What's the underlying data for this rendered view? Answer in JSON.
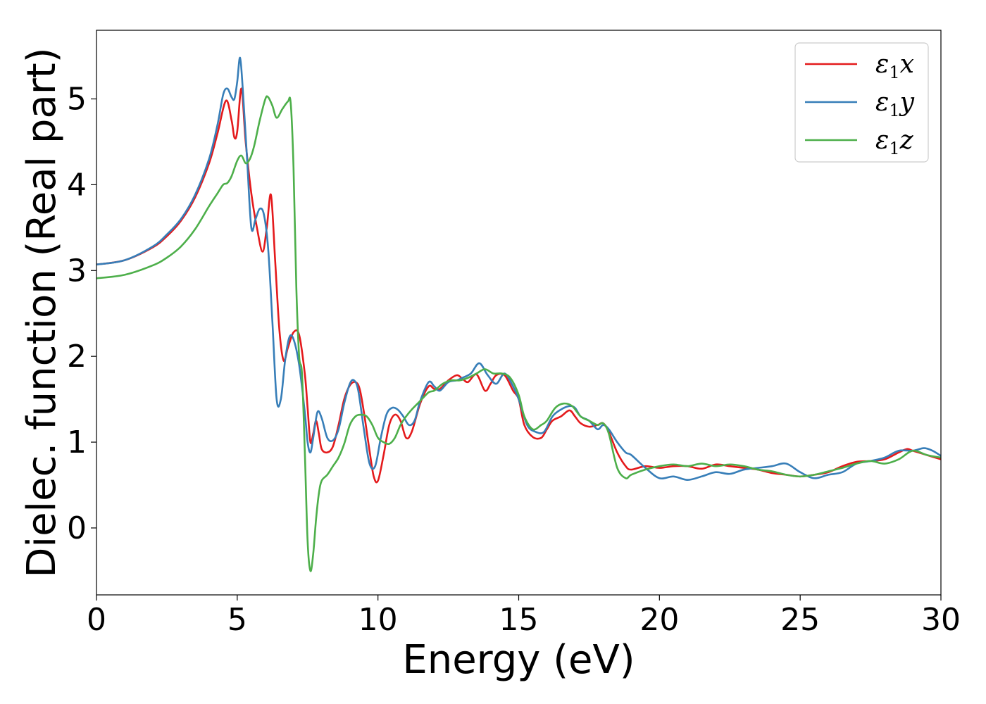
{
  "chart_data": {
    "type": "line",
    "xlabel": "Energy (eV)",
    "ylabel": "Dielec. function (Real part)",
    "xlim": [
      0,
      30
    ],
    "ylim": [
      -0.78,
      5.8
    ],
    "xticks": [
      0,
      5,
      10,
      15,
      20,
      25,
      30
    ],
    "yticks": [
      0,
      1,
      2,
      3,
      4,
      5
    ],
    "grid": false,
    "legend_position": "top-right",
    "series": [
      {
        "name": "ε1x",
        "label_base": "ε",
        "label_sub": "1",
        "label_tail": "x",
        "color": "#e41a1c",
        "x": [
          0,
          1,
          2,
          2.5,
          3,
          3.5,
          4,
          4.3,
          4.6,
          4.8,
          4.9,
          5.0,
          5.15,
          5.3,
          5.5,
          5.7,
          5.9,
          6.05,
          6.2,
          6.35,
          6.5,
          6.65,
          6.8,
          7.0,
          7.2,
          7.4,
          7.5,
          7.6,
          7.7,
          7.8,
          7.9,
          8.0,
          8.2,
          8.4,
          8.6,
          8.8,
          9.0,
          9.2,
          9.35,
          9.5,
          9.7,
          9.85,
          10.0,
          10.2,
          10.4,
          10.6,
          10.8,
          11.0,
          11.2,
          11.5,
          11.8,
          12.0,
          12.2,
          12.5,
          12.8,
          13.0,
          13.2,
          13.5,
          13.8,
          14.0,
          14.2,
          14.5,
          14.8,
          15.0,
          15.2,
          15.5,
          15.8,
          16.0,
          16.2,
          16.5,
          16.8,
          17.0,
          17.2,
          17.5,
          17.8,
          18.0,
          18.2,
          18.5,
          18.8,
          19.0,
          19.5,
          20.0,
          20.5,
          21.0,
          21.5,
          22.0,
          22.5,
          23.0,
          23.5,
          24.0,
          24.5,
          25.0,
          25.5,
          26.0,
          26.5,
          27.0,
          27.5,
          28.0,
          28.5,
          28.8,
          29.0,
          29.5,
          30.0
        ],
        "y": [
          3.07,
          3.12,
          3.27,
          3.4,
          3.58,
          3.85,
          4.25,
          4.6,
          4.98,
          4.75,
          4.55,
          4.62,
          5.12,
          4.5,
          3.9,
          3.5,
          3.22,
          3.5,
          3.88,
          3.1,
          2.3,
          1.95,
          2.1,
          2.28,
          2.25,
          1.8,
          1.4,
          1.0,
          1.1,
          1.25,
          1.1,
          0.92,
          0.88,
          0.95,
          1.2,
          1.5,
          1.66,
          1.7,
          1.62,
          1.35,
          0.9,
          0.6,
          0.55,
          0.85,
          1.2,
          1.32,
          1.25,
          1.05,
          1.12,
          1.45,
          1.65,
          1.62,
          1.62,
          1.72,
          1.78,
          1.74,
          1.7,
          1.79,
          1.6,
          1.68,
          1.78,
          1.78,
          1.6,
          1.5,
          1.2,
          1.06,
          1.05,
          1.15,
          1.25,
          1.3,
          1.37,
          1.3,
          1.22,
          1.18,
          1.2,
          1.22,
          1.12,
          0.88,
          0.72,
          0.68,
          0.72,
          0.7,
          0.72,
          0.72,
          0.69,
          0.74,
          0.72,
          0.7,
          0.68,
          0.64,
          0.62,
          0.6,
          0.62,
          0.65,
          0.72,
          0.77,
          0.78,
          0.8,
          0.88,
          0.92,
          0.9,
          0.85,
          0.8
        ]
      },
      {
        "name": "ε1y",
        "label_base": "ε",
        "label_sub": "1",
        "label_tail": "y",
        "color": "#377eb8",
        "x": [
          0,
          1,
          2,
          2.5,
          3,
          3.5,
          4,
          4.3,
          4.5,
          4.65,
          4.8,
          4.9,
          5.0,
          5.1,
          5.2,
          5.35,
          5.5,
          5.65,
          5.8,
          5.95,
          6.1,
          6.25,
          6.4,
          6.55,
          6.7,
          6.85,
          7.0,
          7.2,
          7.4,
          7.5,
          7.6,
          7.7,
          7.85,
          8.0,
          8.2,
          8.4,
          8.6,
          8.8,
          9.0,
          9.15,
          9.3,
          9.5,
          9.7,
          9.9,
          10.1,
          10.3,
          10.5,
          10.7,
          10.9,
          11.1,
          11.3,
          11.5,
          11.8,
          12.0,
          12.2,
          12.5,
          12.8,
          13.0,
          13.3,
          13.6,
          13.9,
          14.2,
          14.5,
          14.8,
          15.0,
          15.3,
          15.6,
          15.9,
          16.2,
          16.5,
          16.8,
          17.0,
          17.2,
          17.5,
          17.8,
          18.0,
          18.2,
          18.5,
          18.8,
          19.0,
          19.5,
          20.0,
          20.5,
          21.0,
          21.5,
          22.0,
          22.5,
          23.0,
          23.5,
          24.0,
          24.5,
          25.0,
          25.5,
          26.0,
          26.5,
          27.0,
          27.5,
          28.0,
          28.5,
          29.0,
          29.4,
          29.7,
          30.0
        ],
        "y": [
          3.07,
          3.12,
          3.28,
          3.42,
          3.6,
          3.88,
          4.3,
          4.7,
          5.05,
          5.12,
          5.02,
          5.0,
          5.2,
          5.48,
          5.1,
          4.3,
          3.5,
          3.6,
          3.72,
          3.65,
          3.25,
          2.4,
          1.5,
          1.5,
          1.95,
          2.22,
          2.2,
          1.9,
          1.35,
          1.0,
          0.88,
          1.05,
          1.35,
          1.28,
          1.05,
          1.02,
          1.15,
          1.45,
          1.68,
          1.72,
          1.6,
          1.15,
          0.75,
          0.72,
          1.05,
          1.32,
          1.4,
          1.38,
          1.3,
          1.2,
          1.25,
          1.48,
          1.7,
          1.65,
          1.6,
          1.7,
          1.72,
          1.75,
          1.8,
          1.92,
          1.78,
          1.68,
          1.8,
          1.65,
          1.5,
          1.2,
          1.12,
          1.12,
          1.3,
          1.38,
          1.42,
          1.4,
          1.3,
          1.25,
          1.15,
          1.2,
          1.15,
          1.0,
          0.88,
          0.85,
          0.7,
          0.58,
          0.6,
          0.56,
          0.6,
          0.65,
          0.63,
          0.68,
          0.7,
          0.72,
          0.75,
          0.65,
          0.58,
          0.62,
          0.65,
          0.75,
          0.78,
          0.82,
          0.9,
          0.9,
          0.93,
          0.9,
          0.84
        ]
      },
      {
        "name": "ε1z",
        "label_base": "ε",
        "label_sub": "1",
        "label_tail": "z",
        "color": "#4daf4a",
        "x": [
          0,
          1,
          2,
          2.5,
          3,
          3.5,
          4,
          4.3,
          4.5,
          4.65,
          4.8,
          5.0,
          5.15,
          5.3,
          5.45,
          5.6,
          5.8,
          6.0,
          6.1,
          6.25,
          6.4,
          6.6,
          6.8,
          6.9,
          7.0,
          7.1,
          7.2,
          7.3,
          7.4,
          7.5,
          7.6,
          7.7,
          7.8,
          7.9,
          8.0,
          8.2,
          8.4,
          8.6,
          8.8,
          9.0,
          9.2,
          9.4,
          9.6,
          9.8,
          10.0,
          10.2,
          10.4,
          10.6,
          10.8,
          11.0,
          11.2,
          11.5,
          11.8,
          12.0,
          12.3,
          12.6,
          12.9,
          13.2,
          13.5,
          13.8,
          14.1,
          14.4,
          14.7,
          15.0,
          15.2,
          15.5,
          15.8,
          16.0,
          16.3,
          16.6,
          16.9,
          17.2,
          17.5,
          17.8,
          18.0,
          18.2,
          18.5,
          18.8,
          19.0,
          19.5,
          20.0,
          20.5,
          21.0,
          21.5,
          22.0,
          22.5,
          23.0,
          23.5,
          24.0,
          24.5,
          25.0,
          25.5,
          26.0,
          26.5,
          27.0,
          27.5,
          28.0,
          28.5,
          29.0,
          29.5,
          30.0
        ],
        "y": [
          2.91,
          2.95,
          3.06,
          3.15,
          3.28,
          3.48,
          3.75,
          3.9,
          4.0,
          4.02,
          4.1,
          4.28,
          4.34,
          4.25,
          4.3,
          4.45,
          4.75,
          5.0,
          5.02,
          4.92,
          4.78,
          4.88,
          4.97,
          4.95,
          4.2,
          2.8,
          2.0,
          1.8,
          0.9,
          -0.15,
          -0.5,
          -0.3,
          0.1,
          0.4,
          0.55,
          0.62,
          0.72,
          0.82,
          0.98,
          1.2,
          1.3,
          1.32,
          1.3,
          1.2,
          1.05,
          1.0,
          0.98,
          1.05,
          1.2,
          1.3,
          1.38,
          1.48,
          1.58,
          1.6,
          1.68,
          1.72,
          1.72,
          1.75,
          1.8,
          1.85,
          1.8,
          1.8,
          1.75,
          1.55,
          1.3,
          1.15,
          1.2,
          1.25,
          1.4,
          1.45,
          1.42,
          1.3,
          1.25,
          1.2,
          1.22,
          1.1,
          0.7,
          0.58,
          0.62,
          0.68,
          0.72,
          0.74,
          0.72,
          0.75,
          0.72,
          0.74,
          0.72,
          0.68,
          0.66,
          0.62,
          0.6,
          0.62,
          0.66,
          0.7,
          0.75,
          0.78,
          0.75,
          0.8,
          0.9,
          0.85,
          0.82
        ]
      }
    ]
  }
}
